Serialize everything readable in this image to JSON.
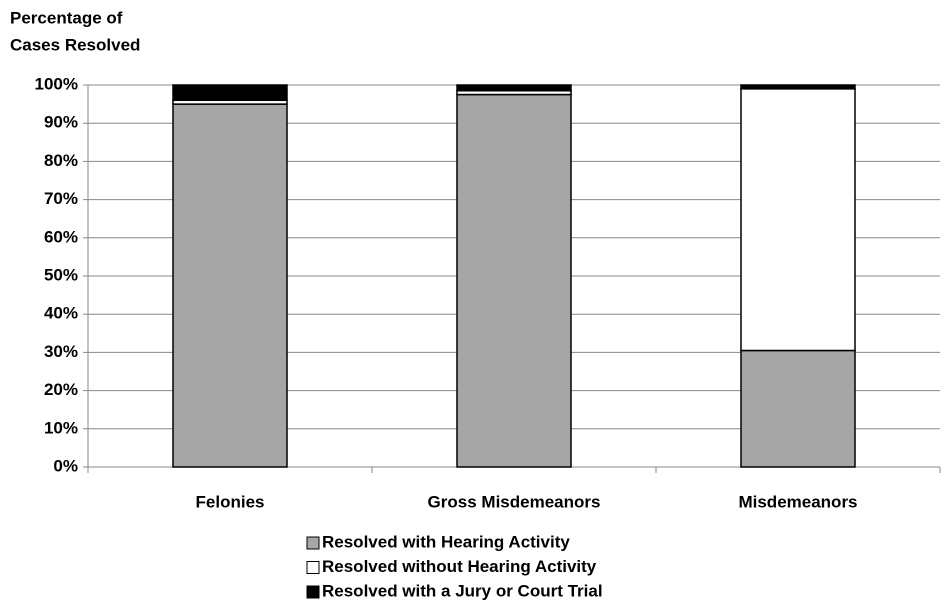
{
  "chart_data": {
    "type": "stacked-bar",
    "title_lines": [
      "Percentage of",
      "Cases Resolved"
    ],
    "categories": [
      "Felonies",
      "Gross Misdemeanors",
      "Misdemeanors"
    ],
    "series": [
      {
        "name": "Resolved with Hearing Activity",
        "color": "#a6a6a6",
        "values": [
          95,
          97.5,
          30.5
        ]
      },
      {
        "name": "Resolved without Hearing Activity",
        "color": "#ffffff",
        "values": [
          1,
          1,
          68.5
        ]
      },
      {
        "name": "Resolved with a Jury or Court Trial",
        "color": "#000000",
        "values": [
          4,
          1.5,
          1
        ]
      }
    ],
    "ylim": [
      0,
      100
    ],
    "yticks": [
      {
        "value": 0,
        "label": "0%"
      },
      {
        "value": 10,
        "label": "10%"
      },
      {
        "value": 20,
        "label": "20%"
      },
      {
        "value": 30,
        "label": "30%"
      },
      {
        "value": 40,
        "label": "40%"
      },
      {
        "value": 50,
        "label": "50%"
      },
      {
        "value": 60,
        "label": "60%"
      },
      {
        "value": 70,
        "label": "70%"
      },
      {
        "value": 80,
        "label": "80%"
      },
      {
        "value": 90,
        "label": "90%"
      },
      {
        "value": 100,
        "label": "100%"
      }
    ],
    "grid": true
  }
}
